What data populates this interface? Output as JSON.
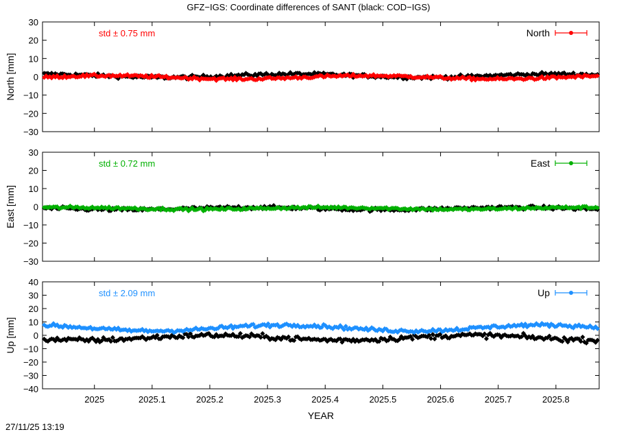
{
  "title": "GFZ−IGS: Coordinate differences of SANT (black: COD−IGS)",
  "timestamp": "27/11/25 13:19",
  "colors": {
    "background": "#ffffff",
    "axis": "#000000",
    "reference_series": "#000000",
    "north": "#ff0000",
    "east": "#00b000",
    "up": "#1e90ff"
  },
  "chart_data": [
    {
      "type": "line",
      "component": "North",
      "ylabel": "North [mm]",
      "xlabel": "",
      "xlim": [
        2024.91,
        2025.875
      ],
      "ylim": [
        -30,
        30
      ],
      "yticks": [
        30,
        20,
        10,
        0,
        -10,
        -20,
        -30
      ],
      "ytick_labels": [
        "30",
        "20",
        "10",
        "0",
        "−10",
        "−20",
        "−30"
      ],
      "xticks": [],
      "std_label": "std ± 0.75 mm",
      "legend": {
        "label": "North",
        "position": "top-right"
      },
      "series": [
        {
          "name": "North",
          "color": "#ff0000",
          "mean": -0.3,
          "amplitude": 0.9,
          "noise": 0.75
        },
        {
          "color": "#000000",
          "mean": 0.6,
          "amplitude": 0.9,
          "noise": 0.9
        }
      ]
    },
    {
      "type": "line",
      "component": "East",
      "ylabel": "East [mm]",
      "xlabel": "",
      "xlim": [
        2024.91,
        2025.875
      ],
      "ylim": [
        -30,
        30
      ],
      "yticks": [
        30,
        20,
        10,
        0,
        -10,
        -20,
        -30
      ],
      "ytick_labels": [
        "30",
        "20",
        "10",
        "0",
        "−10",
        "−20",
        "−30"
      ],
      "xticks": [],
      "std_label": "std ± 0.72 mm",
      "legend": {
        "label": "East",
        "position": "top-right"
      },
      "series": [
        {
          "name": "East",
          "color": "#00b000",
          "mean": -0.9,
          "amplitude": 0.5,
          "noise": 0.7
        },
        {
          "color": "#000000",
          "mean": -1.0,
          "amplitude": 0.6,
          "noise": 0.9
        }
      ]
    },
    {
      "type": "line",
      "component": "Up",
      "ylabel": "Up [mm]",
      "xlabel": "YEAR",
      "xlim": [
        2024.91,
        2025.875
      ],
      "ylim": [
        -40,
        40
      ],
      "yticks": [
        40,
        30,
        20,
        10,
        0,
        -10,
        -20,
        -30,
        -40
      ],
      "ytick_labels": [
        "40",
        "30",
        "20",
        "10",
        "0",
        "−10",
        "−20",
        "−30",
        "−40"
      ],
      "xticks": [
        2025.0,
        2025.1,
        2025.2,
        2025.3,
        2025.4,
        2025.5,
        2025.6,
        2025.7,
        2025.8
      ],
      "xtick_labels": [
        "2025",
        "2025.1",
        "2025.2",
        "2025.3",
        "2025.4",
        "2025.5",
        "2025.6",
        "2025.7",
        "2025.8"
      ],
      "std_label": "std ± 2.09 mm",
      "legend": {
        "label": "Up",
        "position": "top-right"
      },
      "series": [
        {
          "name": "Up",
          "color": "#1e90ff",
          "mean": 5.5,
          "amplitude": 2.2,
          "noise": 1.3
        },
        {
          "color": "#000000",
          "mean": -1.8,
          "amplitude": 1.8,
          "noise": 1.8
        }
      ]
    }
  ]
}
